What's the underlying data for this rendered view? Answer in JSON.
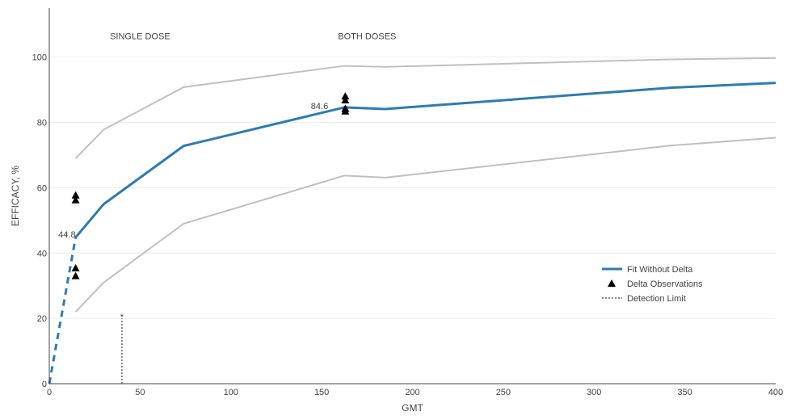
{
  "chart_data": {
    "type": "line",
    "xlabel": "GMT",
    "ylabel": "EFFICACY, %",
    "xlim": [
      0,
      400
    ],
    "ylim": [
      0,
      115
    ],
    "x_ticks": [
      0,
      50,
      100,
      150,
      200,
      250,
      300,
      350,
      400
    ],
    "y_ticks": [
      0,
      20,
      40,
      60,
      80,
      100
    ],
    "grid": "horizontal",
    "legend_position": "right",
    "colors": {
      "fit": "#2e7bb4",
      "bounds": "#c0c0c0",
      "markers": "#000000",
      "detection": "#666666"
    },
    "annotations": [
      {
        "text": "SINGLE DOSE",
        "x": 50,
        "y": 106.5
      },
      {
        "text": "BOTH DOSES",
        "x": 175,
        "y": 106.5
      },
      {
        "text": "44.8",
        "x": 14.5,
        "y": 44.8
      },
      {
        "text": "84.6",
        "x": 162.5,
        "y": 84.6
      },
      {
        "text": "*",
        "x": 40,
        "y": 21
      }
    ],
    "series": [
      {
        "name": "Fit Without Delta",
        "style": "line",
        "x": [
          14.5,
          30,
          74,
          162.5,
          185,
          342,
          400
        ],
        "y": [
          44.8,
          55,
          72.8,
          84.6,
          84.1,
          90.6,
          92.1
        ]
      },
      {
        "style": "dashed-line",
        "x": [
          0,
          14.5
        ],
        "y": [
          0,
          44.8
        ]
      },
      {
        "style": "bound",
        "x": [
          14.5,
          30,
          74,
          162.5,
          185,
          342,
          400
        ],
        "y": [
          69,
          77.8,
          90.8,
          97.3,
          97,
          99.3,
          99.7
        ]
      },
      {
        "style": "bound",
        "x": [
          14.5,
          30,
          74,
          162.5,
          185,
          342,
          400
        ],
        "y": [
          22,
          31,
          49,
          63.7,
          63.1,
          72.9,
          75.3
        ]
      },
      {
        "name": "Delta Observations",
        "style": "markers",
        "x": [
          14.5,
          14.5,
          14.5,
          14.5,
          163,
          163,
          163,
          163
        ],
        "y": [
          57.7,
          56.2,
          35.4,
          33,
          88,
          86.8,
          84.2,
          83.4
        ]
      },
      {
        "name": "Detection Limit",
        "style": "vline",
        "x": [
          40,
          40
        ],
        "y": [
          0,
          20
        ]
      }
    ]
  }
}
